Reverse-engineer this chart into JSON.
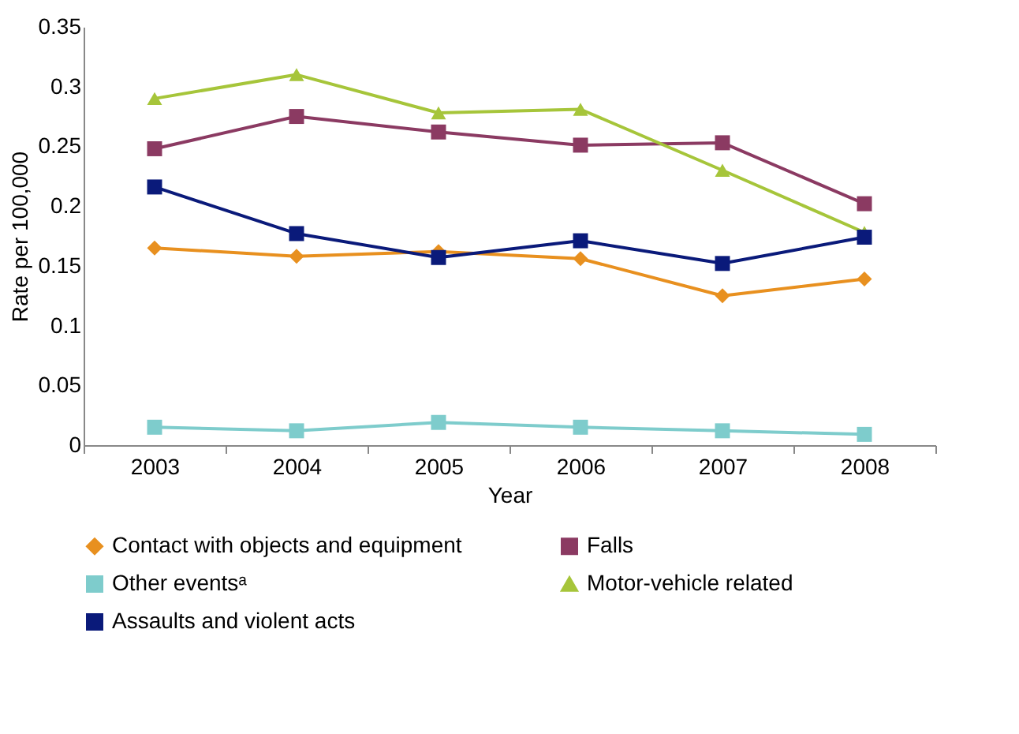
{
  "chart_data": {
    "type": "line",
    "xlabel": "Year",
    "ylabel": "Rate per 100,000",
    "categories": [
      "2003",
      "2004",
      "2005",
      "2006",
      "2007",
      "2008"
    ],
    "ylim": [
      0,
      0.35
    ],
    "yticks": [
      0,
      0.05,
      0.1,
      0.15,
      0.2,
      0.25,
      0.3,
      0.35
    ],
    "grid": false,
    "legend": "bottom",
    "line_style": "solid",
    "series": [
      {
        "name": "Contact with objects and equipment",
        "color": "#e8901f",
        "marker": "diamond",
        "values": [
          0.165,
          0.158,
          0.162,
          0.156,
          0.125,
          0.139
        ]
      },
      {
        "name": "Falls",
        "color": "#8b3a62",
        "marker": "square",
        "values": [
          0.248,
          0.275,
          0.262,
          0.251,
          0.253,
          0.202
        ]
      },
      {
        "name": "Other eventsᵃ",
        "color": "#7ecccc",
        "marker": "square",
        "values": [
          0.015,
          0.012,
          0.019,
          0.015,
          0.012,
          0.009
        ]
      },
      {
        "name": "Motor-vehicle related",
        "color": "#a6c53a",
        "marker": "triangle",
        "values": [
          0.29,
          0.31,
          0.278,
          0.281,
          0.23,
          0.178
        ]
      },
      {
        "name": "Assaults and violent acts",
        "color": "#0a1a7a",
        "marker": "square",
        "values": [
          0.216,
          0.177,
          0.157,
          0.171,
          0.152,
          0.174
        ]
      }
    ]
  }
}
